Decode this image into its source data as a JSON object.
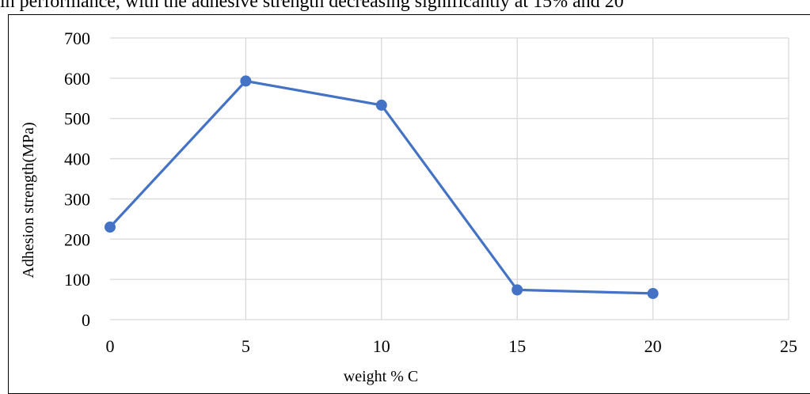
{
  "page": {
    "top_text": "in performance, with the adhesive strength decreasing significantly at 15% and 20"
  },
  "colors": {
    "series": "#4472C4",
    "grid": "#D9D9D9",
    "text": "#000000"
  },
  "chart_data": {
    "type": "line",
    "title": "",
    "xlabel": "weight % C",
    "ylabel": "Adhesion strength(MPa)",
    "xlim": [
      0,
      25
    ],
    "ylim": [
      0,
      700
    ],
    "xticks": [
      "0",
      "5",
      "10",
      "15",
      "20",
      "25"
    ],
    "yticks": [
      "0",
      "100",
      "200",
      "300",
      "400",
      "500",
      "600",
      "700"
    ],
    "grid": true,
    "legend": "none",
    "series": [
      {
        "x": [
          0,
          5,
          10,
          15,
          20
        ],
        "y": [
          230,
          593,
          533,
          74,
          65
        ]
      }
    ]
  }
}
